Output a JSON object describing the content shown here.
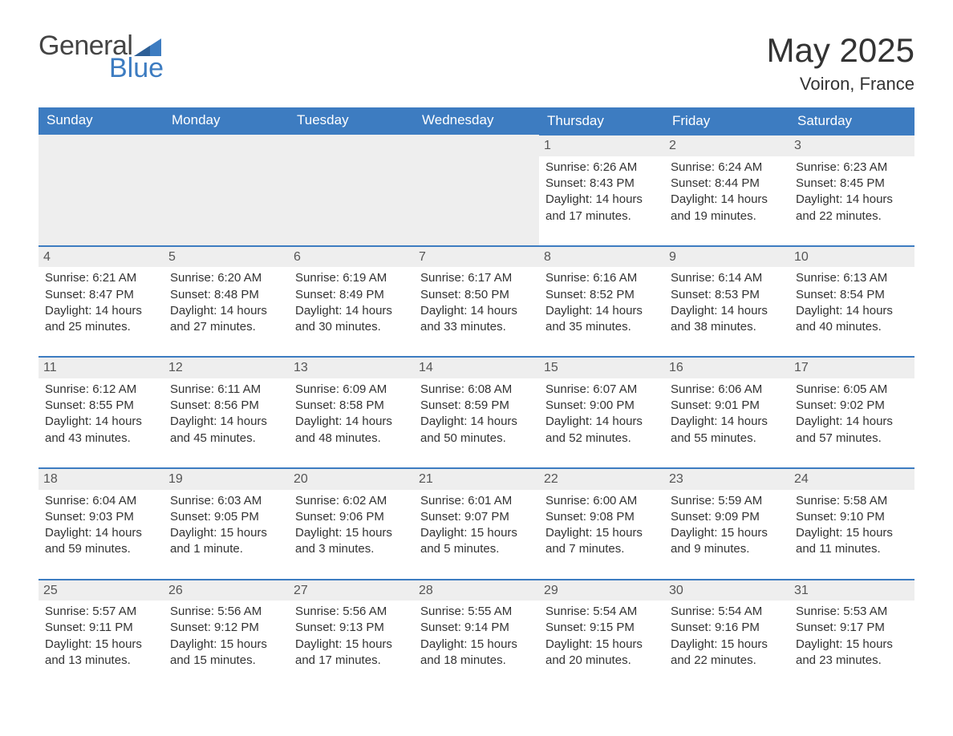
{
  "logo": {
    "text1": "General",
    "text2": "Blue",
    "tri_color": "#3d7cc1"
  },
  "title": "May 2025",
  "location": "Voiron, France",
  "columns": [
    "Sunday",
    "Monday",
    "Tuesday",
    "Wednesday",
    "Thursday",
    "Friday",
    "Saturday"
  ],
  "header_bg": "#3d7cc1",
  "header_fg": "#ffffff",
  "daybar_bg": "#eeeeee",
  "daybar_border": "#3d7cc1",
  "text_color": "#333333",
  "weeks": [
    [
      null,
      null,
      null,
      null,
      {
        "n": 1,
        "sunrise": "6:26 AM",
        "sunset": "8:43 PM",
        "daylight": "14 hours and 17 minutes."
      },
      {
        "n": 2,
        "sunrise": "6:24 AM",
        "sunset": "8:44 PM",
        "daylight": "14 hours and 19 minutes."
      },
      {
        "n": 3,
        "sunrise": "6:23 AM",
        "sunset": "8:45 PM",
        "daylight": "14 hours and 22 minutes."
      }
    ],
    [
      {
        "n": 4,
        "sunrise": "6:21 AM",
        "sunset": "8:47 PM",
        "daylight": "14 hours and 25 minutes."
      },
      {
        "n": 5,
        "sunrise": "6:20 AM",
        "sunset": "8:48 PM",
        "daylight": "14 hours and 27 minutes."
      },
      {
        "n": 6,
        "sunrise": "6:19 AM",
        "sunset": "8:49 PM",
        "daylight": "14 hours and 30 minutes."
      },
      {
        "n": 7,
        "sunrise": "6:17 AM",
        "sunset": "8:50 PM",
        "daylight": "14 hours and 33 minutes."
      },
      {
        "n": 8,
        "sunrise": "6:16 AM",
        "sunset": "8:52 PM",
        "daylight": "14 hours and 35 minutes."
      },
      {
        "n": 9,
        "sunrise": "6:14 AM",
        "sunset": "8:53 PM",
        "daylight": "14 hours and 38 minutes."
      },
      {
        "n": 10,
        "sunrise": "6:13 AM",
        "sunset": "8:54 PM",
        "daylight": "14 hours and 40 minutes."
      }
    ],
    [
      {
        "n": 11,
        "sunrise": "6:12 AM",
        "sunset": "8:55 PM",
        "daylight": "14 hours and 43 minutes."
      },
      {
        "n": 12,
        "sunrise": "6:11 AM",
        "sunset": "8:56 PM",
        "daylight": "14 hours and 45 minutes."
      },
      {
        "n": 13,
        "sunrise": "6:09 AM",
        "sunset": "8:58 PM",
        "daylight": "14 hours and 48 minutes."
      },
      {
        "n": 14,
        "sunrise": "6:08 AM",
        "sunset": "8:59 PM",
        "daylight": "14 hours and 50 minutes."
      },
      {
        "n": 15,
        "sunrise": "6:07 AM",
        "sunset": "9:00 PM",
        "daylight": "14 hours and 52 minutes."
      },
      {
        "n": 16,
        "sunrise": "6:06 AM",
        "sunset": "9:01 PM",
        "daylight": "14 hours and 55 minutes."
      },
      {
        "n": 17,
        "sunrise": "6:05 AM",
        "sunset": "9:02 PM",
        "daylight": "14 hours and 57 minutes."
      }
    ],
    [
      {
        "n": 18,
        "sunrise": "6:04 AM",
        "sunset": "9:03 PM",
        "daylight": "14 hours and 59 minutes."
      },
      {
        "n": 19,
        "sunrise": "6:03 AM",
        "sunset": "9:05 PM",
        "daylight": "15 hours and 1 minute."
      },
      {
        "n": 20,
        "sunrise": "6:02 AM",
        "sunset": "9:06 PM",
        "daylight": "15 hours and 3 minutes."
      },
      {
        "n": 21,
        "sunrise": "6:01 AM",
        "sunset": "9:07 PM",
        "daylight": "15 hours and 5 minutes."
      },
      {
        "n": 22,
        "sunrise": "6:00 AM",
        "sunset": "9:08 PM",
        "daylight": "15 hours and 7 minutes."
      },
      {
        "n": 23,
        "sunrise": "5:59 AM",
        "sunset": "9:09 PM",
        "daylight": "15 hours and 9 minutes."
      },
      {
        "n": 24,
        "sunrise": "5:58 AM",
        "sunset": "9:10 PM",
        "daylight": "15 hours and 11 minutes."
      }
    ],
    [
      {
        "n": 25,
        "sunrise": "5:57 AM",
        "sunset": "9:11 PM",
        "daylight": "15 hours and 13 minutes."
      },
      {
        "n": 26,
        "sunrise": "5:56 AM",
        "sunset": "9:12 PM",
        "daylight": "15 hours and 15 minutes."
      },
      {
        "n": 27,
        "sunrise": "5:56 AM",
        "sunset": "9:13 PM",
        "daylight": "15 hours and 17 minutes."
      },
      {
        "n": 28,
        "sunrise": "5:55 AM",
        "sunset": "9:14 PM",
        "daylight": "15 hours and 18 minutes."
      },
      {
        "n": 29,
        "sunrise": "5:54 AM",
        "sunset": "9:15 PM",
        "daylight": "15 hours and 20 minutes."
      },
      {
        "n": 30,
        "sunrise": "5:54 AM",
        "sunset": "9:16 PM",
        "daylight": "15 hours and 22 minutes."
      },
      {
        "n": 31,
        "sunrise": "5:53 AM",
        "sunset": "9:17 PM",
        "daylight": "15 hours and 23 minutes."
      }
    ]
  ],
  "labels": {
    "sunrise": "Sunrise:",
    "sunset": "Sunset:",
    "daylight": "Daylight:"
  }
}
